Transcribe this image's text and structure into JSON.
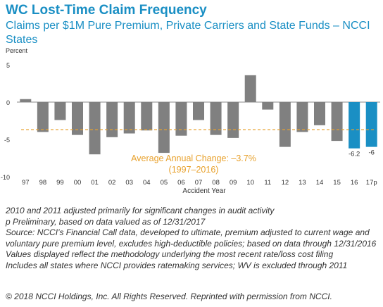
{
  "title": "WC Lost-Time Claim Frequency",
  "subtitle": "Claims per $1M Pure Premium, Private Carriers and State Funds – NCCI States",
  "chart_data": {
    "type": "bar",
    "ylabel": "Percent",
    "xlabel": "Accident Year",
    "ylim": [
      -10,
      5
    ],
    "yticks": [
      5,
      0,
      -5,
      -10
    ],
    "categories": [
      "97",
      "98",
      "99",
      "00",
      "01",
      "02",
      "03",
      "04",
      "05",
      "06",
      "07",
      "08",
      "09",
      "10",
      "11",
      "12",
      "13",
      "14",
      "15",
      "16",
      "17p"
    ],
    "values": [
      0.4,
      -4.0,
      -2.4,
      -4.4,
      -7.0,
      -4.7,
      -4.2,
      -3.8,
      -6.8,
      -4.5,
      -2.4,
      -4.4,
      -4.8,
      3.6,
      -1.0,
      -6.0,
      -4.0,
      -3.1,
      -5.2,
      -6.2,
      -6.0
    ],
    "bar_colors": [
      "#808080",
      "#808080",
      "#808080",
      "#808080",
      "#808080",
      "#808080",
      "#808080",
      "#808080",
      "#808080",
      "#808080",
      "#808080",
      "#808080",
      "#808080",
      "#808080",
      "#808080",
      "#808080",
      "#808080",
      "#808080",
      "#808080",
      "#1a8fc4",
      "#1a8fc4"
    ],
    "data_labels": [
      {
        "index": 19,
        "text": "-6.2"
      },
      {
        "index": 20,
        "text": "-6"
      }
    ],
    "reference_line": {
      "value": -3.7,
      "color": "#e8a12c",
      "label_line1": "Average Annual Change: –3.7%",
      "label_line2": "(1997–2016)"
    },
    "grid": false
  },
  "notes": [
    "2010 and 2011 adjusted primarily for significant changes in audit activity",
    "p Preliminary, based on data valued as of 12/31/2017",
    "Source: NCCI’s Financial Call data, developed to ultimate, premium adjusted to current wage and voluntary pure premium level, excludes high-deductible policies; based on data through 12/31/2016",
    "Values displayed reflect the methodology underlying the most recent rate/loss cost filing",
    "Includes all states where NCCI provides ratemaking services; WV is excluded through 2011"
  ],
  "copyright": "© 2018 NCCI Holdings, Inc. All Rights Reserved. Reprinted with permission from NCCI."
}
